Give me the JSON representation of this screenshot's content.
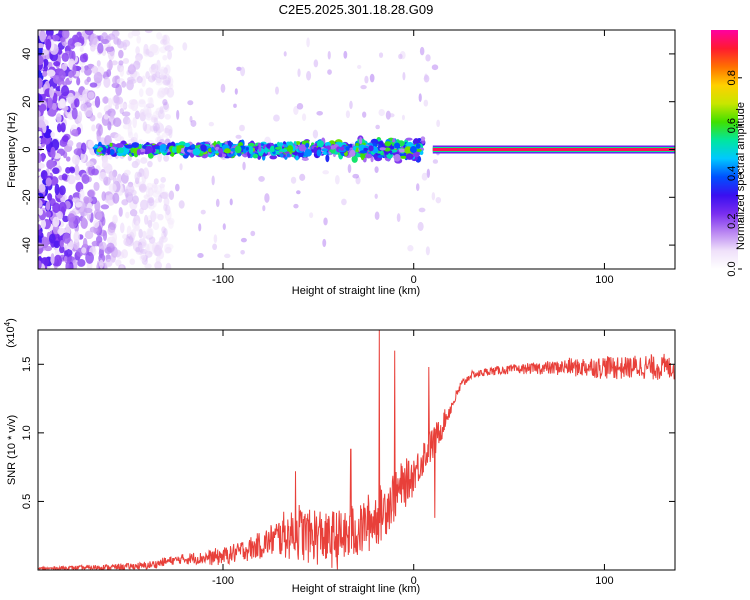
{
  "title": "C2E5.2025.301.18.28.G09",
  "colors": {
    "axis": "#000000",
    "snr_line": "#e8403a",
    "colormap": [
      "#ffffff",
      "#efe0fa",
      "#b985f2",
      "#7a2ef0",
      "#3a0ff0",
      "#0050ff",
      "#00c8ff",
      "#00e6a0",
      "#40e000",
      "#c8e600",
      "#ffd000",
      "#ff7000",
      "#ff1a30",
      "#ff00a0"
    ]
  },
  "chart_data": [
    {
      "type": "heatmap",
      "name": "spectrogram",
      "xlabel": "Height of straight line (km)",
      "ylabel": "Frequency (Hz)",
      "xlim": [
        -197,
        137
      ],
      "ylim": [
        -50,
        50
      ],
      "xticks": [
        -100,
        0,
        100
      ],
      "xtick_labels": [
        "-100",
        "0",
        "100"
      ],
      "yticks": [
        -40,
        -20,
        0,
        20,
        40
      ],
      "ytick_labels": [
        "-40",
        "-20",
        "0",
        "20",
        "40"
      ],
      "colorbar": {
        "label": "Normalized spectral amplitude",
        "range": [
          0,
          1
        ],
        "ticks": [
          0.0,
          0.2,
          0.4,
          0.6,
          0.8
        ],
        "tick_labels": [
          "0.0",
          "0.2",
          "0.4",
          "0.6",
          "0.8"
        ]
      },
      "features": [
        {
          "desc": "broadband noise",
          "x_range": [
            -197,
            -137
          ],
          "f_range": [
            -50,
            50
          ],
          "amplitude": 0.15
        },
        {
          "desc": "noisy band around 0 Hz",
          "x_range": [
            -167,
            5
          ],
          "f_center": 0,
          "f_halfwidth": 5,
          "amplitude": 0.3
        },
        {
          "desc": "steady line at 0 Hz",
          "x_range": [
            10,
            137
          ],
          "f_center": 0,
          "amplitude": 0.95
        }
      ]
    },
    {
      "type": "line",
      "name": "snr",
      "xlabel": "Height of straight line (km)",
      "ylabel": "SNR (10 * v/v)",
      "y_multiplier": "(x10",
      "y_multiplier_exp": "4",
      "y_multiplier_close": ")",
      "xlim": [
        -197,
        137
      ],
      "ylim": [
        0,
        1.75
      ],
      "xticks": [
        -100,
        0,
        100
      ],
      "xtick_labels": [
        "-100",
        "0",
        "100"
      ],
      "yticks": [
        0.5,
        1.0,
        1.5
      ],
      "ytick_labels": [
        "0.5",
        "1.0",
        "1.5"
      ],
      "trend": {
        "x": [
          -197,
          -160,
          -140,
          -130,
          -120,
          -100,
          -90,
          -80,
          -70,
          -60,
          -50,
          -40,
          -30,
          -20,
          -15,
          -10,
          -5,
          0,
          5,
          10,
          15,
          20,
          25,
          30,
          40,
          60,
          80,
          100,
          120,
          137
        ],
        "y": [
          0.01,
          0.02,
          0.03,
          0.06,
          0.08,
          0.1,
          0.14,
          0.18,
          0.25,
          0.28,
          0.25,
          0.22,
          0.28,
          0.38,
          0.45,
          0.55,
          0.62,
          0.7,
          0.82,
          0.92,
          1.05,
          1.2,
          1.35,
          1.42,
          1.45,
          1.47,
          1.48,
          1.48,
          1.48,
          1.48
        ]
      },
      "noise_amplitude": {
        "x": [
          -197,
          -140,
          -120,
          -80,
          -60,
          -40,
          -20,
          -10,
          0,
          10,
          20,
          30,
          60,
          100,
          137
        ],
        "y": [
          0.01,
          0.03,
          0.04,
          0.1,
          0.22,
          0.22,
          0.22,
          0.2,
          0.16,
          0.14,
          0.05,
          0.03,
          0.04,
          0.09,
          0.1
        ]
      },
      "peaks": [
        {
          "x": -18,
          "y": 1.75
        },
        {
          "x": -10,
          "y": 1.6
        },
        {
          "x": -33,
          "y": 0.88
        },
        {
          "x": -62,
          "y": 0.72
        },
        {
          "x": 8,
          "y": 1.48
        },
        {
          "x": 11,
          "y": 0.38
        }
      ]
    }
  ]
}
